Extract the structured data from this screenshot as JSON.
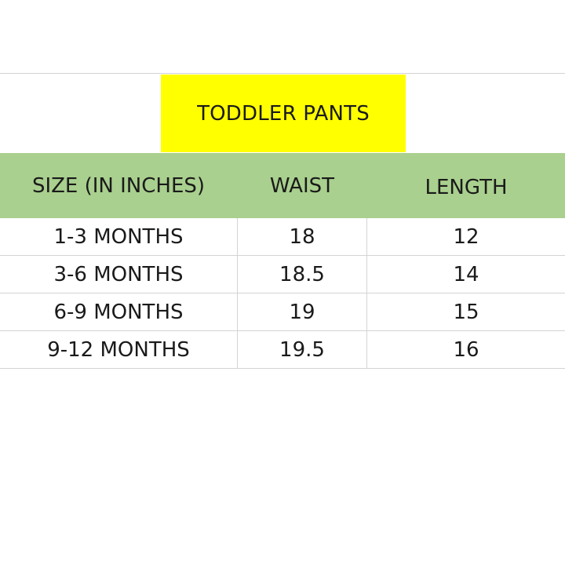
{
  "table": {
    "title": "TODDLER PANTS",
    "columns": [
      "SIZE (IN INCHES)",
      "WAIST",
      "LENGTH"
    ],
    "rows": [
      {
        "size": "1-3 MONTHS",
        "waist": "18",
        "length": "12"
      },
      {
        "size": "3-6 MONTHS",
        "waist": "18.5",
        "length": "14"
      },
      {
        "size": "6-9 MONTHS",
        "waist": "19",
        "length": "15"
      },
      {
        "size": "9-12 MONTHS",
        "waist": "19.5",
        "length": "16"
      }
    ]
  },
  "colors": {
    "title_fill": "#ffff00",
    "header_fill": "#a9d08e",
    "grid_line": "#d4d4d4"
  }
}
